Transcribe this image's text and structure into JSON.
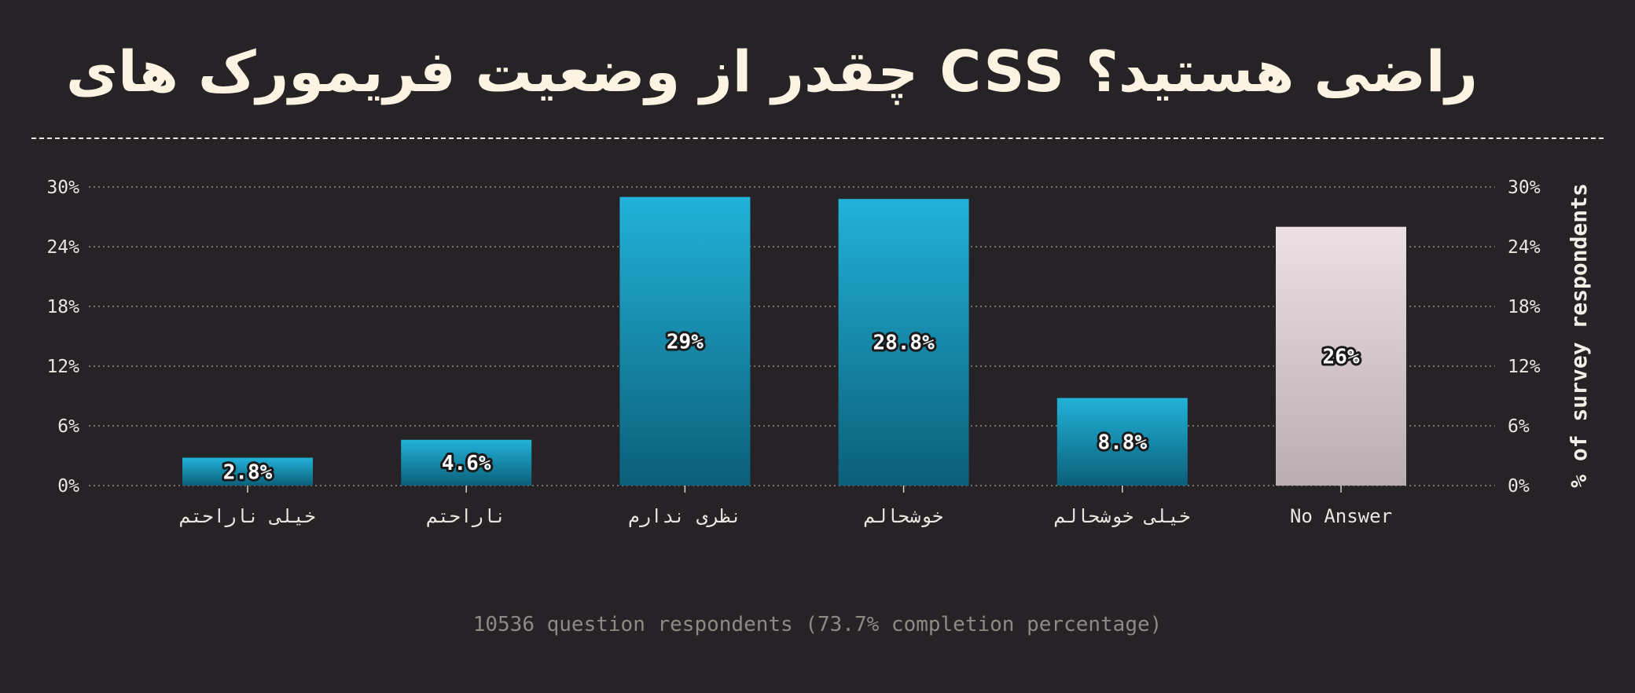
{
  "title": "راضی هستید؟ CSS چقدر از وضعیت فریمورک های",
  "footnote": "10536 question respondents (73.7% completion percentage)",
  "colors": {
    "background": "#252325",
    "bar_top": "#22b2d9",
    "bar_bottom": "#0b5f79",
    "no_answer_top": "#ece0e4",
    "no_answer_bottom": "#b9adb1",
    "title": "#fdf3e2",
    "gridline": "#8a8784",
    "text": "#e9e6e2",
    "footnote": "#8d8a86"
  },
  "chart_data": {
    "type": "bar",
    "title": "راضی هستید؟ CSS چقدر از وضعیت فریمورک های",
    "categories": [
      "خیلی ناراحتم",
      "ناراحتم",
      "نظری ندارم",
      "خوشحالم",
      "خیلی خوشحالم",
      "No Answer"
    ],
    "values": [
      2.8,
      4.6,
      29,
      28.8,
      8.8,
      26
    ],
    "value_labels": [
      "2.8%",
      "4.6%",
      "29%",
      "28.8%",
      "8.8%",
      "26%"
    ],
    "yticks": [
      0,
      6,
      12,
      18,
      24,
      30
    ],
    "ytick_labels": [
      "0%",
      "6%",
      "12%",
      "18%",
      "24%",
      "30%"
    ],
    "ylim": [
      0,
      30
    ],
    "ylabel": "% of survey respondents",
    "xlabel": "",
    "grid": true,
    "secondary_axis": "right"
  }
}
